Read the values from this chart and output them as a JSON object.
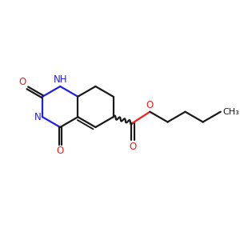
{
  "bg_color": "#ffffff",
  "bond_color": "#1a1a1a",
  "N_color": "#2020ee",
  "O_color": "#ee2020",
  "lw": 1.6,
  "fs": 8.5,
  "figsize": [
    3.0,
    3.0
  ],
  "dpi": 100,
  "xlim": [
    -2.3,
    5.5
  ],
  "ylim": [
    -2.5,
    2.0
  ]
}
